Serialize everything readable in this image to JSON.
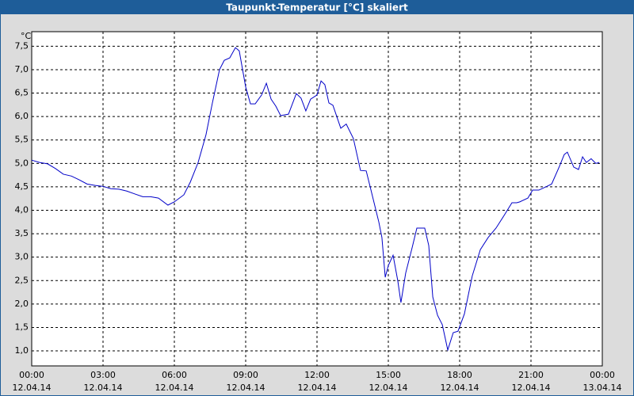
{
  "chart_data": {
    "type": "line",
    "title": "Taupunkt-Temperatur [°C] skaliert",
    "y_unit": "°C",
    "x": [
      0,
      0.33,
      0.67,
      1,
      1.33,
      1.67,
      2,
      2.33,
      2.67,
      3,
      3.33,
      3.67,
      4,
      4.33,
      4.67,
      5,
      5.33,
      5.73,
      6,
      6.4,
      6.67,
      7,
      7.33,
      7.6,
      7.9,
      8.1,
      8.33,
      8.57,
      8.73,
      9,
      9.2,
      9.4,
      9.67,
      9.87,
      10.07,
      10.27,
      10.47,
      10.8,
      11.13,
      11.33,
      11.53,
      11.73,
      12,
      12.17,
      12.33,
      12.5,
      12.67,
      13,
      13.23,
      13.53,
      13.83,
      14.07,
      14.27,
      14.6,
      14.73,
      14.87,
      15,
      15.2,
      15.4,
      15.53,
      15.73,
      16,
      16.2,
      16.53,
      16.7,
      16.87,
      17.07,
      17.27,
      17.5,
      17.73,
      17.93,
      18.2,
      18.53,
      18.87,
      19.2,
      19.53,
      19.87,
      20.2,
      20.4,
      20.53,
      20.87,
      21.07,
      21.33,
      21.67,
      21.87,
      22.2,
      22.4,
      22.53,
      22.8,
      23,
      23.17,
      23.33,
      23.53,
      23.73,
      23.87
    ],
    "series": [
      {
        "name": "Taupunkt",
        "color": "#0000c8",
        "values": [
          5.07,
          5.02,
          4.99,
          4.89,
          4.77,
          4.73,
          4.65,
          4.56,
          4.53,
          4.51,
          4.46,
          4.45,
          4.41,
          4.35,
          4.29,
          4.29,
          4.26,
          4.11,
          4.18,
          4.33,
          4.6,
          5.02,
          5.61,
          6.29,
          7.0,
          7.2,
          7.25,
          7.47,
          7.4,
          6.63,
          6.27,
          6.27,
          6.46,
          6.71,
          6.37,
          6.22,
          6.02,
          6.05,
          6.49,
          6.39,
          6.12,
          6.37,
          6.46,
          6.76,
          6.68,
          6.29,
          6.24,
          5.75,
          5.84,
          5.53,
          4.85,
          4.84,
          4.43,
          3.75,
          3.42,
          2.57,
          2.82,
          3.04,
          2.49,
          2.03,
          2.66,
          3.2,
          3.62,
          3.62,
          3.25,
          2.15,
          1.76,
          1.56,
          1.02,
          1.39,
          1.42,
          1.79,
          2.6,
          3.16,
          3.42,
          3.62,
          3.89,
          4.16,
          4.16,
          4.18,
          4.26,
          4.43,
          4.43,
          4.51,
          4.56,
          4.94,
          5.19,
          5.24,
          4.92,
          4.87,
          5.14,
          5.02,
          5.1,
          5.0,
          5.02
        ]
      }
    ],
    "xlim": [
      0,
      24
    ],
    "xticks": [
      {
        "value": 0,
        "label": "00:00"
      },
      {
        "value": 3,
        "label": "03:00"
      },
      {
        "value": 6,
        "label": "06:00"
      },
      {
        "value": 9,
        "label": "09:00"
      },
      {
        "value": 12,
        "label": "12:00"
      },
      {
        "value": 15,
        "label": "15:00"
      },
      {
        "value": 18,
        "label": "18:00"
      },
      {
        "value": 21,
        "label": "21:00"
      },
      {
        "value": 24,
        "label": "00:00"
      }
    ],
    "xtick_dates": [
      "12.04.14",
      "12.04.14",
      "12.04.14",
      "12.04.14",
      "12.04.14",
      "12.04.14",
      "12.04.14",
      "12.04.14",
      "13.04.14"
    ],
    "ylim": [
      0.68,
      7.81
    ],
    "yticks": [
      {
        "value": 1,
        "label": "1,0"
      },
      {
        "value": 1.5,
        "label": "1,5"
      },
      {
        "value": 2,
        "label": "2,0"
      },
      {
        "value": 2.5,
        "label": "2,5"
      },
      {
        "value": 3,
        "label": "3,0"
      },
      {
        "value": 3.5,
        "label": "3,5"
      },
      {
        "value": 4,
        "label": "4,0"
      },
      {
        "value": 4.5,
        "label": "4,5"
      },
      {
        "value": 5,
        "label": "5,0"
      },
      {
        "value": 5.5,
        "label": "5,5"
      },
      {
        "value": 6,
        "label": "6,0"
      },
      {
        "value": 6.5,
        "label": "6,5"
      },
      {
        "value": 7,
        "label": "7,0"
      },
      {
        "value": 7.5,
        "label": "7,5"
      }
    ],
    "grid": true
  }
}
